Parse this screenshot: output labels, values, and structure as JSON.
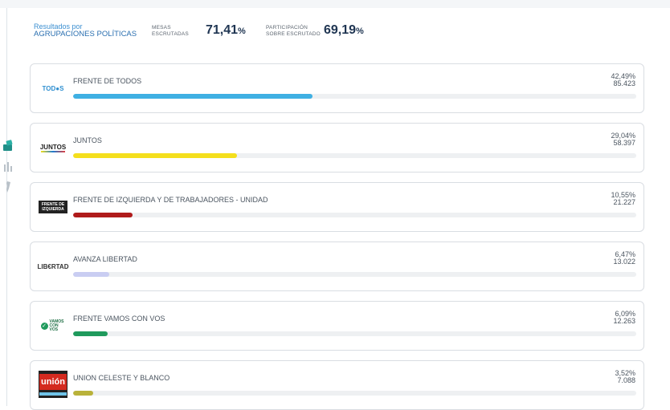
{
  "header": {
    "label_line1": "Resultados por",
    "label_line2": "AGRUPACIONES POLÍTICAS",
    "mesas_caption_1": "MESAS",
    "mesas_caption_2": "ESCRUTADAS",
    "mesas_value": "71,41",
    "mesas_unit": "%",
    "participacion_caption_1": "PARTICIPACIÓN",
    "participacion_caption_2": "SOBRE ESCRUTADO",
    "participacion_value": "69,19",
    "participacion_unit": "%"
  },
  "rail": {
    "icons": [
      "ballot-box-icon",
      "bar-chart-icon",
      "map-icon"
    ]
  },
  "parties": [
    {
      "name": "FRENTE DE TODOS",
      "percent": "42,49%",
      "votes": "85.423",
      "share": 42.49,
      "color": "#3fb0e3",
      "logo_text": "TOD●S",
      "logo_color": "#2f8fd0"
    },
    {
      "name": "JUNTOS",
      "percent": "29,04%",
      "votes": "58.397",
      "share": 29.04,
      "color": "#f4df1c",
      "logo_text": "JUNTOS",
      "logo_color": "#222222"
    },
    {
      "name": "FRENTE DE IZQUIERDA Y DE TRABAJADORES - UNIDAD",
      "percent": "10,55%",
      "votes": "21.227",
      "share": 10.55,
      "color": "#b01b1b",
      "logo_text": "FRENTE DE IZQUIERDA",
      "logo_color": "#ffffff"
    },
    {
      "name": "AVANZA LIBERTAD",
      "percent": "6,47%",
      "votes": "13.022",
      "share": 6.47,
      "color": "#c9cdf2",
      "logo_text": "LIB€RTAD",
      "logo_color": "#333333"
    },
    {
      "name": "FRENTE VAMOS CON VOS",
      "percent": "6,09%",
      "votes": "12.263",
      "share": 6.09,
      "color": "#1f9a5c",
      "logo_text": "VAMOS CON VOS",
      "logo_color": "#1f6f45"
    },
    {
      "name": "UNION CELESTE Y BLANCO",
      "percent": "3,52%",
      "votes": "7.088",
      "share": 3.52,
      "color": "#b9b23a",
      "logo_text": "unión",
      "logo_color": "#ffffff"
    }
  ]
}
